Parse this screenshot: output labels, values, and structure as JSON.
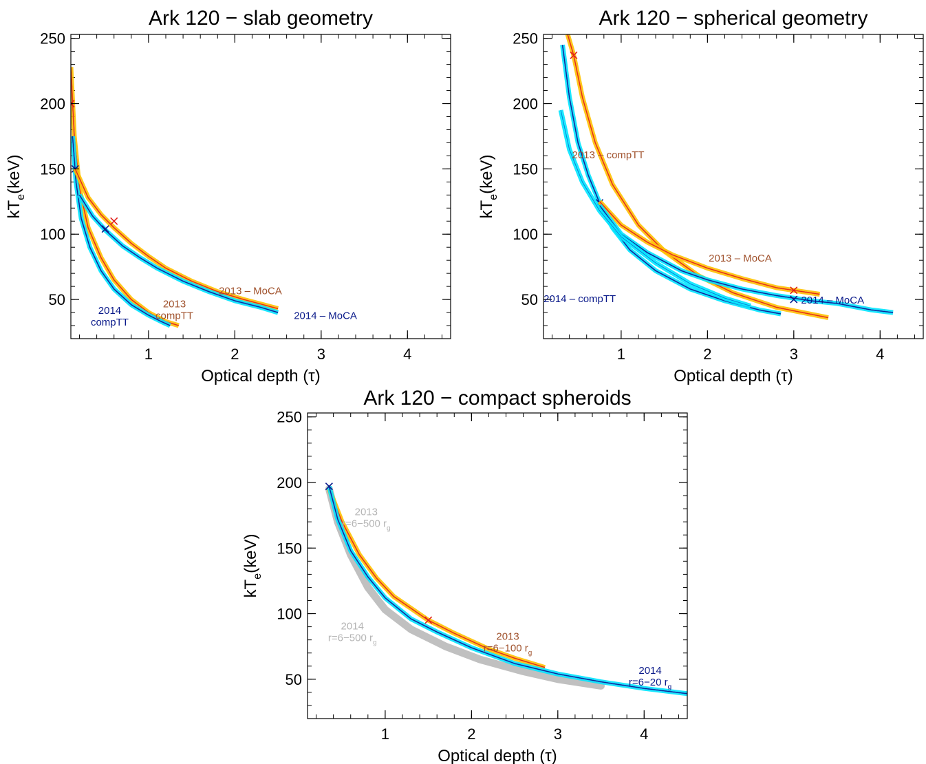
{
  "figure_note": "",
  "colors": {
    "y2013_outer": "#ffc200",
    "y2013_mid": "#f47c10",
    "y2013_inner": "#e0201a",
    "y2014_outer": "#00e5ff",
    "y2014_mid": "#0a7dd6",
    "y2014_inner": "#0a1a8a",
    "label_2013": "#a0522d",
    "label_2014": "#0a1a8a",
    "label_gray": "#b5b5b5",
    "band_gray": "#bdbdbd"
  },
  "chart_data": [
    {
      "type": "contour",
      "title": "Ark 120 − slab geometry",
      "xlabel": "Optical depth (τ)",
      "ylabel": "kT",
      "ylabel_sub": "e",
      "ylabel_tail": "(keV)",
      "xlim": [
        0.1,
        4.5
      ],
      "ylim": [
        20,
        253
      ],
      "xticks": [
        1,
        2,
        3,
        4
      ],
      "yticks": [
        50,
        100,
        150,
        200,
        250
      ],
      "series": [
        {
          "color_key": "y2013",
          "best": [
            0.1,
            200
          ],
          "x": [
            0.1,
            0.14,
            0.2,
            0.3,
            0.45,
            0.6,
            0.8,
            1.0,
            1.2,
            1.35
          ],
          "y": [
            228,
            175,
            135,
            105,
            82,
            65,
            50,
            40,
            33,
            30
          ]
        },
        {
          "color_key": "y2014",
          "best": [
            0.15,
            150
          ],
          "x": [
            0.12,
            0.16,
            0.22,
            0.32,
            0.45,
            0.6,
            0.8,
            1.0,
            1.15,
            1.25
          ],
          "y": [
            175,
            140,
            112,
            90,
            72,
            58,
            46,
            38,
            33,
            30
          ]
        },
        {
          "color_key": "y2013",
          "best": [
            0.6,
            110
          ],
          "x": [
            0.15,
            0.3,
            0.45,
            0.6,
            0.8,
            1.0,
            1.2,
            1.5,
            1.8,
            2.1,
            2.5
          ],
          "y": [
            150,
            128,
            115,
            105,
            93,
            83,
            74,
            64,
            56,
            50,
            43
          ]
        },
        {
          "color_key": "y2014",
          "best": [
            0.5,
            104
          ],
          "x": [
            0.2,
            0.35,
            0.5,
            0.7,
            0.9,
            1.1,
            1.4,
            1.7,
            2.0,
            2.3,
            2.5
          ],
          "y": [
            130,
            114,
            103,
            91,
            82,
            74,
            64,
            56,
            49,
            44,
            40
          ]
        }
      ],
      "annotations": [
        {
          "lines": [
            "2013 – MoCA"
          ],
          "color_key": "label_2013",
          "x": 2.18,
          "y": 54
        },
        {
          "lines": [
            "2014 – MoCA"
          ],
          "color_key": "label_2014",
          "x": 3.05,
          "y": 35
        },
        {
          "lines": [
            "2013",
            "compTT"
          ],
          "color_key": "label_2013",
          "x": 1.3,
          "y": 44
        },
        {
          "lines": [
            "2014",
            "compTT"
          ],
          "color_key": "label_2014",
          "x": 0.55,
          "y": 39
        }
      ]
    },
    {
      "type": "contour",
      "title": "Ark 120 − spherical geometry",
      "xlabel": "Optical depth (τ)",
      "ylabel": "kT",
      "ylabel_sub": "e",
      "ylabel_tail": "(keV)",
      "xlim": [
        0.1,
        4.5
      ],
      "ylim": [
        20,
        253
      ],
      "xticks": [
        1,
        2,
        3,
        4
      ],
      "yticks": [
        50,
        100,
        150,
        200,
        250
      ],
      "series": [
        {
          "color_key": "y2013",
          "best": [
            0.45,
            237
          ],
          "x": [
            0.38,
            0.45,
            0.55,
            0.7,
            0.9,
            1.2,
            1.5,
            1.9,
            2.3,
            2.8,
            3.4
          ],
          "y": [
            253,
            237,
            205,
            170,
            138,
            107,
            87,
            68,
            55,
            44,
            36
          ]
        },
        {
          "color_key": "y2014",
          "best": [
            0.75,
            124
          ],
          "x": [
            0.32,
            0.4,
            0.5,
            0.62,
            0.75,
            0.9,
            1.1,
            1.4,
            1.8,
            2.2,
            2.6,
            2.85
          ],
          "y": [
            245,
            205,
            170,
            145,
            124,
            105,
            88,
            72,
            58,
            49,
            42,
            39
          ]
        },
        {
          "color_key": "y2013",
          "best": [
            3.0,
            57
          ],
          "x": [
            0.75,
            1.0,
            1.3,
            1.6,
            2.0,
            2.4,
            2.8,
            3.0,
            3.3
          ],
          "y": [
            125,
            107,
            94,
            84,
            74,
            66,
            59,
            57,
            54
          ]
        },
        {
          "color_key": "y2014",
          "best": [
            3.0,
            50
          ],
          "x": [
            0.75,
            1.0,
            1.3,
            1.7,
            2.0,
            2.4,
            2.8,
            3.2,
            3.5,
            3.9,
            4.15
          ],
          "y": [
            122,
            100,
            86,
            72,
            65,
            58,
            53,
            49,
            47,
            42,
            40
          ]
        },
        {
          "color_key": "y2014_light",
          "best": null,
          "x": [
            0.3,
            0.4,
            0.55,
            0.75,
            1.0,
            1.4,
            1.8,
            2.2,
            2.5
          ],
          "y": [
            195,
            165,
            140,
            118,
            98,
            78,
            62,
            51,
            45
          ]
        }
      ],
      "annotations": [
        {
          "lines": [
            "2013 – compTT"
          ],
          "color_key": "label_2013",
          "x": 0.85,
          "y": 158
        },
        {
          "lines": [
            "2013 – MoCA"
          ],
          "color_key": "label_2013",
          "x": 2.38,
          "y": 79
        },
        {
          "lines": [
            "2014 – compTT"
          ],
          "color_key": "label_2014",
          "x": 0.52,
          "y": 48
        },
        {
          "lines": [
            "2014 – MoCA"
          ],
          "color_key": "label_2014",
          "x": 3.45,
          "y": 47
        }
      ]
    },
    {
      "type": "contour",
      "title": "Ark 120 − compact spheroids",
      "xlabel": "Optical depth (τ)",
      "ylabel": "kT",
      "ylabel_sub": "e",
      "ylabel_tail": "(keV)",
      "xlim": [
        0.1,
        4.5
      ],
      "ylim": [
        20,
        253
      ],
      "xticks": [
        1,
        2,
        3,
        4
      ],
      "yticks": [
        50,
        100,
        150,
        200,
        250
      ],
      "series": [
        {
          "color_key": "gray_band",
          "best": null,
          "x": [
            0.35,
            0.45,
            0.6,
            0.8,
            1.0,
            1.3,
            1.7,
            2.1,
            2.6,
            3.0,
            3.5
          ],
          "y": [
            195,
            170,
            145,
            120,
            103,
            88,
            75,
            65,
            56,
            50,
            45
          ]
        },
        {
          "color_key": "y2013",
          "best": [
            1.5,
            95
          ],
          "x": [
            0.35,
            0.5,
            0.7,
            0.9,
            1.1,
            1.3,
            1.5,
            1.8,
            2.2,
            2.5,
            2.85
          ],
          "y": [
            195,
            170,
            145,
            127,
            113,
            104,
            95,
            85,
            73,
            66,
            59
          ]
        },
        {
          "color_key": "y2014",
          "best": [
            0.35,
            197
          ],
          "x": [
            0.35,
            0.45,
            0.6,
            0.8,
            1.0,
            1.3,
            1.6,
            2.0,
            2.5,
            3.0,
            3.5,
            4.0,
            4.5
          ],
          "y": [
            197,
            172,
            148,
            128,
            112,
            96,
            86,
            74,
            62,
            54,
            48,
            43,
            39
          ]
        }
      ],
      "annotations": [
        {
          "lines": [
            "2013",
            "r=6−500 r_g"
          ],
          "color_key": "label_gray",
          "x": 0.78,
          "y": 175
        },
        {
          "lines": [
            "2014",
            "r=6−500 r_g"
          ],
          "color_key": "label_gray",
          "x": 0.62,
          "y": 88
        },
        {
          "lines": [
            "2013",
            "r=6−100 r_g"
          ],
          "color_key": "label_2013",
          "x": 2.42,
          "y": 80
        },
        {
          "lines": [
            "2014",
            "r=6−20 r_g"
          ],
          "color_key": "label_2014",
          "x": 4.07,
          "y": 54
        }
      ]
    }
  ]
}
